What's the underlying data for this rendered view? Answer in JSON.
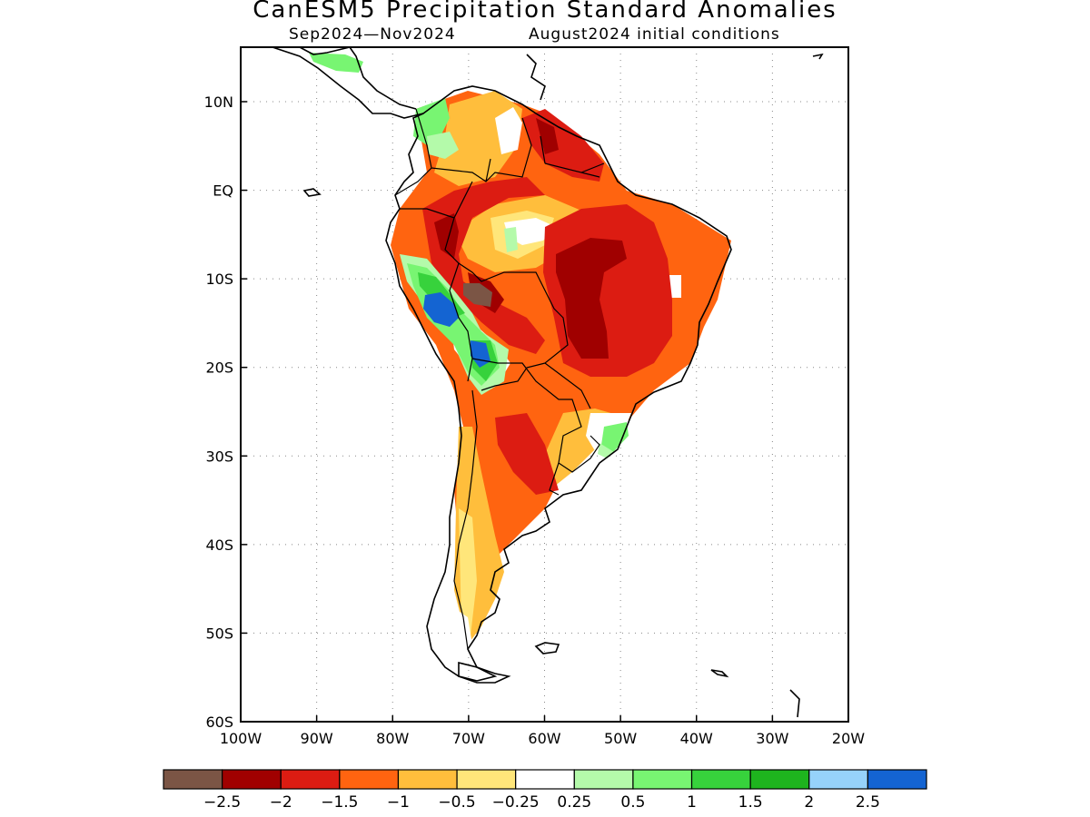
{
  "title": "CanESM5 Precipitation Standard Anomalies",
  "subtitle_period": "Sep2024—Nov2024",
  "subtitle_init": "August2024 initial conditions",
  "map": {
    "lon_range": [
      -100,
      -20
    ],
    "lat_range": [
      -60,
      6
    ],
    "lat_ticks": [
      {
        "value": 10,
        "label": "10N"
      },
      {
        "value": 0,
        "label": "EQ"
      },
      {
        "value": -10,
        "label": "10S"
      },
      {
        "value": -20,
        "label": "20S"
      },
      {
        "value": -30,
        "label": "30S"
      },
      {
        "value": -40,
        "label": "40S"
      },
      {
        "value": -50,
        "label": "50S"
      },
      {
        "value": -60,
        "label": "60S"
      }
    ],
    "lon_ticks": [
      {
        "value": -100,
        "label": "100W"
      },
      {
        "value": -90,
        "label": "90W"
      },
      {
        "value": -80,
        "label": "80W"
      },
      {
        "value": -70,
        "label": "70W"
      },
      {
        "value": -60,
        "label": "60W"
      },
      {
        "value": -50,
        "label": "50W"
      },
      {
        "value": -40,
        "label": "40W"
      },
      {
        "value": -30,
        "label": "30W"
      },
      {
        "value": -20,
        "label": "20W"
      }
    ],
    "grid": "dotted"
  },
  "colorbar": {
    "colors": [
      "#7b5545",
      "#a00000",
      "#dc1c12",
      "#ff6410",
      "#ffbe3c",
      "#ffe67a",
      "#ffffff",
      "#b4faaa",
      "#78f572",
      "#37d23c",
      "#1eb41e",
      "#96d2fa",
      "#1464d2"
    ],
    "labels": [
      "−2.5",
      "−2",
      "−1.5",
      "−1",
      "−0.5",
      "−0.25",
      "0.25",
      "0.5",
      "1",
      "1.5",
      "2",
      "2.5"
    ]
  }
}
